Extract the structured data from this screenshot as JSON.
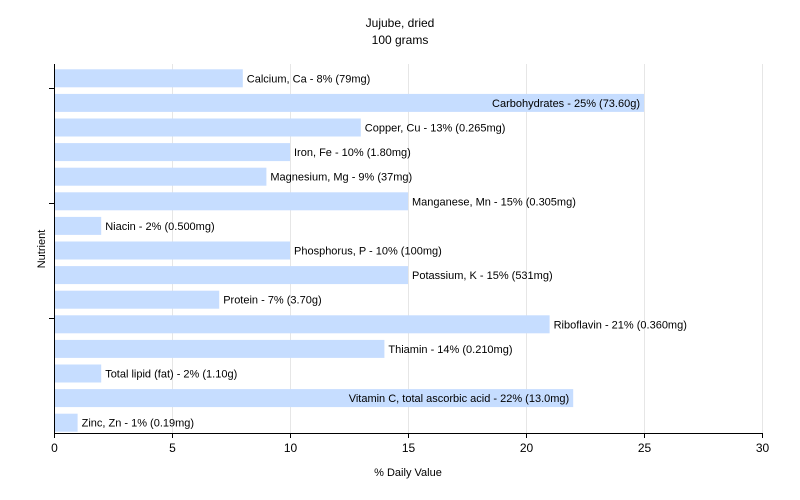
{
  "chart_data": {
    "type": "bar",
    "orientation": "horizontal",
    "title": "Jujube, dried",
    "subtitle": "100 grams",
    "xlabel": "% Daily Value",
    "ylabel": "Nutrient",
    "xlim": [
      0,
      30
    ],
    "x_ticks": [
      "0",
      "5",
      "10",
      "15",
      "20",
      "25",
      "30"
    ],
    "grid": "vertical",
    "bar_color": "#c6ddff",
    "categories": [
      "Calcium, Ca",
      "Carbohydrates",
      "Copper, Cu",
      "Iron, Fe",
      "Magnesium, Mg",
      "Manganese, Mn",
      "Niacin",
      "Phosphorus, P",
      "Potassium, K",
      "Protein",
      "Riboflavin",
      "Thiamin",
      "Total lipid (fat)",
      "Vitamin C, total ascorbic acid",
      "Zinc, Zn"
    ],
    "values": [
      8,
      25,
      13,
      10,
      9,
      15,
      2,
      10,
      15,
      7,
      21,
      14,
      2,
      22,
      1
    ],
    "labels": [
      "Calcium, Ca - 8% (79mg)",
      "Carbohydrates - 25% (73.60g)",
      "Copper, Cu - 13% (0.265mg)",
      "Iron, Fe - 10% (1.80mg)",
      "Magnesium, Mg - 9% (37mg)",
      "Manganese, Mn - 15% (0.305mg)",
      "Niacin - 2% (0.500mg)",
      "Phosphorus, P - 10% (100mg)",
      "Potassium, K - 15% (531mg)",
      "Protein - 7% (3.70g)",
      "Riboflavin - 21% (0.360mg)",
      "Thiamin - 14% (0.210mg)",
      "Total lipid (fat) - 2% (1.10g)",
      "Vitamin C, total ascorbic acid - 22% (13.0mg)",
      "Zinc, Zn - 1% (0.19mg)"
    ],
    "label_inside": [
      false,
      true,
      false,
      false,
      false,
      false,
      false,
      false,
      false,
      false,
      false,
      false,
      false,
      true,
      false
    ]
  }
}
